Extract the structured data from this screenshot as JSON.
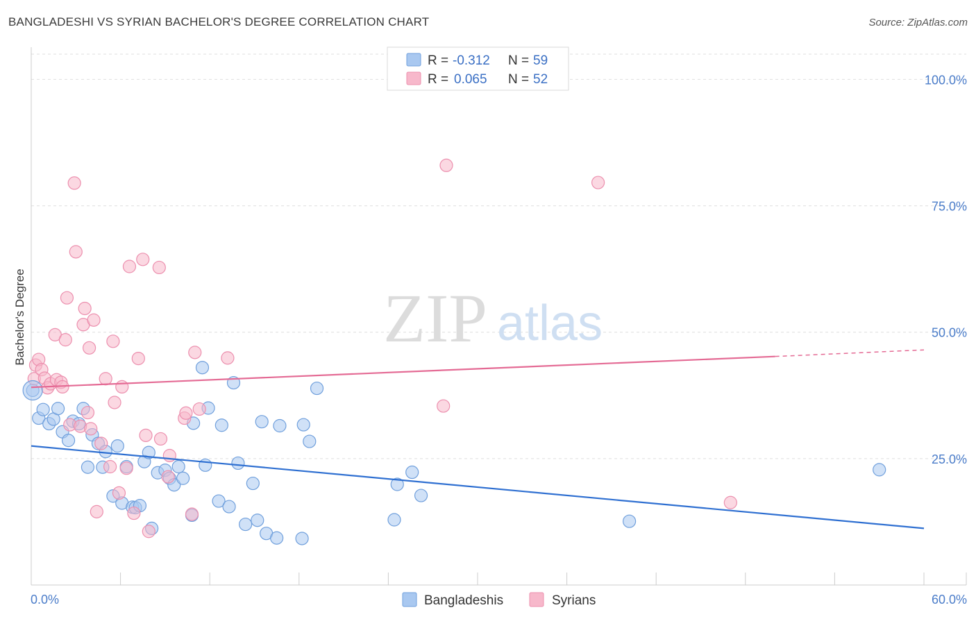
{
  "header": {
    "title": "BANGLADESHI VS SYRIAN BACHELOR'S DEGREE CORRELATION CHART",
    "source": "Source: ZipAtlas.com"
  },
  "watermark": {
    "zip": "ZIP",
    "atlas": "atlas"
  },
  "legend": {
    "rows": [
      {
        "r_label": "R =",
        "r_value": "-0.312",
        "n_label": "N =",
        "n_value": "59",
        "color": "#a9c8f0"
      },
      {
        "r_label": "R =",
        "r_value": "0.065",
        "n_label": "N =",
        "n_value": "52",
        "color": "#f7b8cb"
      }
    ]
  },
  "bottom_legend": [
    "Bangladeshis",
    "Syrians"
  ],
  "chart_data": {
    "type": "scatter",
    "title": "BANGLADESHI VS SYRIAN BACHELOR'S DEGREE CORRELATION CHART",
    "xlabel": "",
    "ylabel": "Bachelor's Degree",
    "xlim": [
      0,
      60
    ],
    "ylim": [
      0,
      105
    ],
    "x_tick_labels": [
      "0.0%",
      "60.0%"
    ],
    "y_ticks": [
      25,
      50,
      75,
      100
    ],
    "y_tick_labels": [
      "25.0%",
      "50.0%",
      "75.0%",
      "100.0%"
    ],
    "grid": true,
    "legend_position": "top-center",
    "series": [
      {
        "name": "Bangladeshis",
        "color": "#a9c8f0",
        "stroke": "#6f9fdc",
        "trend_color": "#2e6fd1",
        "trend": {
          "x0": 0,
          "y0": 27.5,
          "x1": 60,
          "y1": 11.2
        },
        "points": [
          [
            0.1,
            38.5
          ],
          [
            0.5,
            33.0
          ],
          [
            0.8,
            34.7
          ],
          [
            1.2,
            31.9
          ],
          [
            1.5,
            32.8
          ],
          [
            1.8,
            34.9
          ],
          [
            2.1,
            30.3
          ],
          [
            2.5,
            28.6
          ],
          [
            2.8,
            32.4
          ],
          [
            3.2,
            31.9
          ],
          [
            3.5,
            34.9
          ],
          [
            3.8,
            23.3
          ],
          [
            4.1,
            29.7
          ],
          [
            4.5,
            28.0
          ],
          [
            4.8,
            23.3
          ],
          [
            5.0,
            26.4
          ],
          [
            5.5,
            17.6
          ],
          [
            5.8,
            27.5
          ],
          [
            6.1,
            16.2
          ],
          [
            6.4,
            23.4
          ],
          [
            6.8,
            15.4
          ],
          [
            7.0,
            15.3
          ],
          [
            7.3,
            15.7
          ],
          [
            7.6,
            24.4
          ],
          [
            7.9,
            26.2
          ],
          [
            8.1,
            11.2
          ],
          [
            8.5,
            22.2
          ],
          [
            9.0,
            22.7
          ],
          [
            9.3,
            21.1
          ],
          [
            9.6,
            19.8
          ],
          [
            9.9,
            23.4
          ],
          [
            10.2,
            21.1
          ],
          [
            10.8,
            13.8
          ],
          [
            10.9,
            32.0
          ],
          [
            11.5,
            43.0
          ],
          [
            11.7,
            23.7
          ],
          [
            11.9,
            35.0
          ],
          [
            12.6,
            16.6
          ],
          [
            12.8,
            31.6
          ],
          [
            13.3,
            15.5
          ],
          [
            13.6,
            40.0
          ],
          [
            13.9,
            24.1
          ],
          [
            14.4,
            12.0
          ],
          [
            14.9,
            20.1
          ],
          [
            15.2,
            12.8
          ],
          [
            15.5,
            32.3
          ],
          [
            15.8,
            10.2
          ],
          [
            16.5,
            9.3
          ],
          [
            16.7,
            31.5
          ],
          [
            18.2,
            9.2
          ],
          [
            18.3,
            31.7
          ],
          [
            18.7,
            28.4
          ],
          [
            19.2,
            38.9
          ],
          [
            24.4,
            12.9
          ],
          [
            24.6,
            19.9
          ],
          [
            25.6,
            22.3
          ],
          [
            26.2,
            17.7
          ],
          [
            40.2,
            12.6
          ],
          [
            57.0,
            22.8
          ]
        ]
      },
      {
        "name": "Syrians",
        "color": "#f7b8cb",
        "stroke": "#ec8fae",
        "trend_color": "#e46a94",
        "trend": {
          "x0": 0,
          "y0": 39.1,
          "x1": 50,
          "y1": 45.2
        },
        "trend_dashed": {
          "x0": 50,
          "y0": 45.2,
          "x1": 60,
          "y1": 46.5
        },
        "points": [
          [
            0.2,
            40.8
          ],
          [
            0.3,
            43.5
          ],
          [
            0.5,
            44.6
          ],
          [
            0.7,
            42.6
          ],
          [
            0.9,
            40.9
          ],
          [
            1.1,
            39.0
          ],
          [
            1.3,
            39.8
          ],
          [
            1.6,
            49.5
          ],
          [
            1.7,
            40.6
          ],
          [
            2.0,
            40.1
          ],
          [
            2.1,
            39.2
          ],
          [
            2.3,
            48.5
          ],
          [
            2.4,
            56.8
          ],
          [
            2.6,
            31.7
          ],
          [
            2.9,
            79.5
          ],
          [
            3.0,
            65.9
          ],
          [
            3.3,
            31.4
          ],
          [
            3.5,
            51.5
          ],
          [
            3.6,
            54.7
          ],
          [
            3.8,
            34.1
          ],
          [
            3.9,
            46.9
          ],
          [
            4.0,
            30.9
          ],
          [
            4.2,
            52.4
          ],
          [
            4.4,
            14.5
          ],
          [
            4.7,
            28.0
          ],
          [
            5.0,
            40.8
          ],
          [
            5.3,
            23.4
          ],
          [
            5.5,
            48.2
          ],
          [
            5.6,
            36.1
          ],
          [
            5.9,
            18.2
          ],
          [
            6.1,
            39.2
          ],
          [
            6.4,
            23.1
          ],
          [
            6.6,
            63.0
          ],
          [
            6.9,
            14.2
          ],
          [
            7.2,
            44.8
          ],
          [
            7.5,
            64.4
          ],
          [
            7.7,
            29.6
          ],
          [
            7.9,
            10.6
          ],
          [
            8.6,
            62.8
          ],
          [
            8.7,
            28.9
          ],
          [
            9.3,
            25.6
          ],
          [
            9.2,
            21.4
          ],
          [
            10.3,
            33.0
          ],
          [
            10.4,
            34.0
          ],
          [
            10.8,
            14.0
          ],
          [
            11.0,
            46.0
          ],
          [
            11.3,
            34.8
          ],
          [
            13.2,
            44.9
          ],
          [
            27.7,
            35.4
          ],
          [
            27.9,
            83.0
          ],
          [
            38.1,
            79.6
          ],
          [
            47.0,
            16.3
          ]
        ]
      }
    ]
  }
}
